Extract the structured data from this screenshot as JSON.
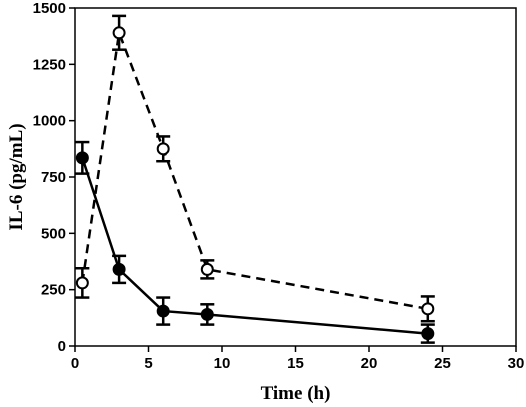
{
  "chart_data": {
    "type": "line",
    "xlabel": "Time (h)",
    "ylabel": "IL-6 (pg/mL)",
    "xlim": [
      0,
      30
    ],
    "ylim": [
      0,
      1500
    ],
    "xticks": [
      0,
      5,
      10,
      15,
      20,
      25,
      30
    ],
    "yticks": [
      0,
      250,
      500,
      750,
      1000,
      1250,
      1500
    ],
    "grid": false,
    "series": [
      {
        "marker": "filled-circle",
        "line_style": "solid",
        "color": "#000000",
        "points": [
          {
            "x": 0.5,
            "y": 835,
            "err": 70
          },
          {
            "x": 3,
            "y": 340,
            "err": 60
          },
          {
            "x": 6,
            "y": 155,
            "err": 60
          },
          {
            "x": 9,
            "y": 140,
            "err": 45
          },
          {
            "x": 24,
            "y": 55,
            "err": 40
          }
        ]
      },
      {
        "marker": "open-circle",
        "line_style": "dashed",
        "color": "#000000",
        "points": [
          {
            "x": 0.5,
            "y": 280,
            "err": 65
          },
          {
            "x": 3,
            "y": 1390,
            "err": 75
          },
          {
            "x": 6,
            "y": 875,
            "err": 55
          },
          {
            "x": 9,
            "y": 340,
            "err": 40
          },
          {
            "x": 24,
            "y": 165,
            "err": 55
          }
        ]
      }
    ]
  }
}
